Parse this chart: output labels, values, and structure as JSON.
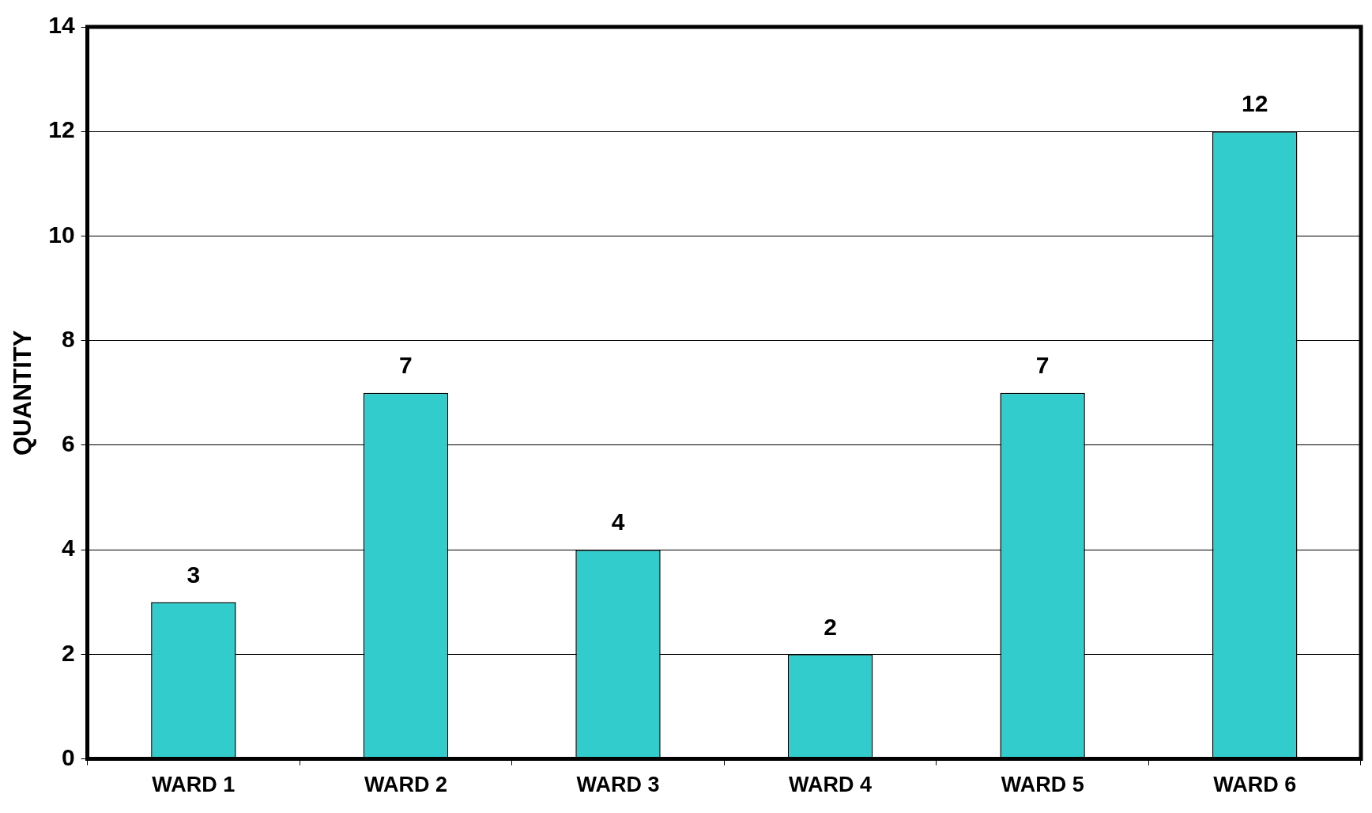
{
  "chart_data": {
    "type": "bar",
    "ylabel": "QUANTITY",
    "categories": [
      "WARD 1",
      "WARD 2",
      "WARD 3",
      "WARD 4",
      "WARD 5",
      "WARD 6"
    ],
    "values": [
      3,
      7,
      4,
      2,
      7,
      12
    ],
    "color": "#33cccc",
    "ylim": [
      0,
      14
    ],
    "yticks": [
      0,
      2,
      4,
      6,
      8,
      10,
      12,
      14
    ],
    "grid": "y",
    "data_labels": true,
    "legend": false
  }
}
